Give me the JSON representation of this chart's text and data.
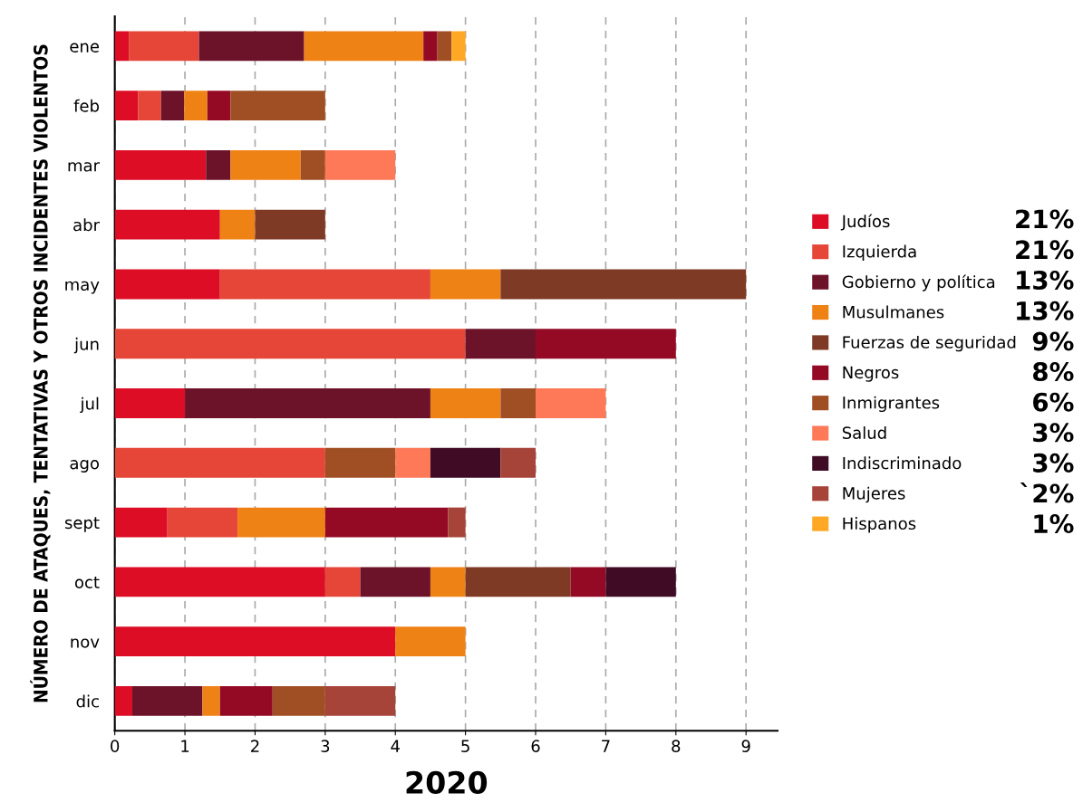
{
  "chart_data": {
    "type": "bar",
    "orientation": "horizontal",
    "stacked": true,
    "xlabel": "2020",
    "ylabel": "NÚMERO DE ATAQUES, TENTATIVAS Y OTROS INCIDENTES VIOLENTOS",
    "categories": [
      "ene",
      "feb",
      "mar",
      "abr",
      "may",
      "jun",
      "jul",
      "ago",
      "sept",
      "oct",
      "nov",
      "dic"
    ],
    "series": [
      {
        "name": "Judíos",
        "color": "#dc0d25",
        "values": [
          0.2,
          0.33,
          1.3,
          1.5,
          1.5,
          null,
          1,
          null,
          0.75,
          3,
          4,
          0.25
        ]
      },
      {
        "name": "Izquierda",
        "color": "#e64637",
        "values": [
          1.0,
          0.33,
          null,
          null,
          3,
          5,
          null,
          3,
          1,
          0.5,
          null,
          null
        ]
      },
      {
        "name": "Gobierno y política",
        "color": "#6c1229",
        "values": [
          1.5,
          0.33,
          0.35,
          null,
          null,
          1,
          3.5,
          null,
          null,
          1,
          null,
          1
        ]
      },
      {
        "name": "Musulmanes",
        "color": "#ef8215",
        "values": [
          1.7,
          0.33,
          1,
          0.5,
          1,
          null,
          1,
          null,
          1.25,
          0.5,
          1,
          0.25
        ]
      },
      {
        "name": "Fuerzas de seguridad",
        "color": "#7f3a25",
        "values": [
          null,
          null,
          null,
          1,
          3.5,
          null,
          null,
          null,
          null,
          1.5,
          null,
          null
        ]
      },
      {
        "name": "Negros",
        "color": "#940a24",
        "values": [
          0.2,
          0.33,
          null,
          null,
          null,
          2,
          null,
          null,
          1.75,
          0.5,
          null,
          0.75
        ]
      },
      {
        "name": "Inmigrantes",
        "color": "#a04f25",
        "values": [
          0.2,
          1.35,
          0.35,
          null,
          null,
          null,
          0.5,
          1,
          null,
          null,
          null,
          0.75
        ]
      },
      {
        "name": "Salud",
        "color": "#fd7958",
        "values": [
          null,
          null,
          1,
          null,
          null,
          null,
          1,
          0.5,
          null,
          null,
          null,
          null
        ]
      },
      {
        "name": "Indiscriminado",
        "color": "#400b24",
        "values": [
          null,
          null,
          null,
          null,
          null,
          null,
          null,
          1,
          null,
          1,
          null,
          null
        ]
      },
      {
        "name": "Mujeres",
        "color": "#a6443a",
        "values": [
          null,
          null,
          null,
          null,
          null,
          null,
          null,
          0.5,
          0.25,
          null,
          null,
          1
        ]
      },
      {
        "name": "Hispanos",
        "color": "#fea825",
        "values": [
          0.2,
          null,
          null,
          null,
          null,
          null,
          null,
          null,
          null,
          null,
          null,
          null
        ]
      }
    ],
    "annotations": [
      "21%",
      "21%",
      "13%",
      "13%",
      "9%",
      "8%",
      "6%",
      "3%",
      "3%",
      "`2%",
      "1%"
    ],
    "xlim": [
      0,
      9.45
    ],
    "xticks": [
      0,
      1,
      2,
      3,
      4,
      5,
      6,
      7,
      8,
      9
    ],
    "grid": "x",
    "legend": "right"
  }
}
